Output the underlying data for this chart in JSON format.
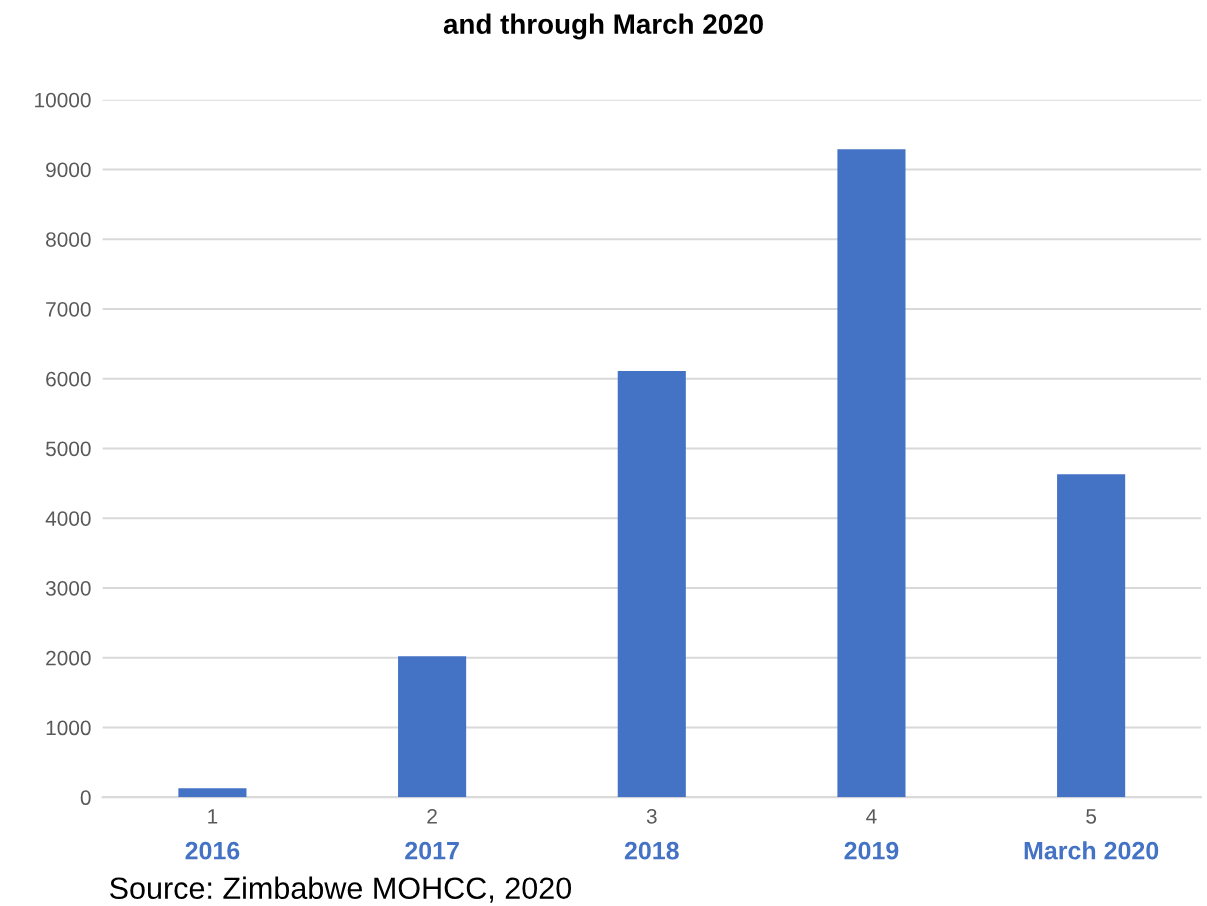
{
  "chart_data": {
    "type": "bar",
    "title": "and through March 2020",
    "categories": [
      "1",
      "2",
      "3",
      "4",
      "5"
    ],
    "values": [
      130,
      2020,
      6110,
      9290,
      4630
    ],
    "color": "#4472c4",
    "ylim": [
      0,
      10000
    ],
    "yticks": [
      0,
      1000,
      2000,
      3000,
      4000,
      5000,
      6000,
      7000,
      8000,
      9000,
      10000
    ],
    "grid": "y",
    "annotations": [
      "2016",
      "2017",
      "2018",
      "2019",
      "March 2020",
      "Source: Zimbabwe MOHCC, 2020"
    ]
  }
}
